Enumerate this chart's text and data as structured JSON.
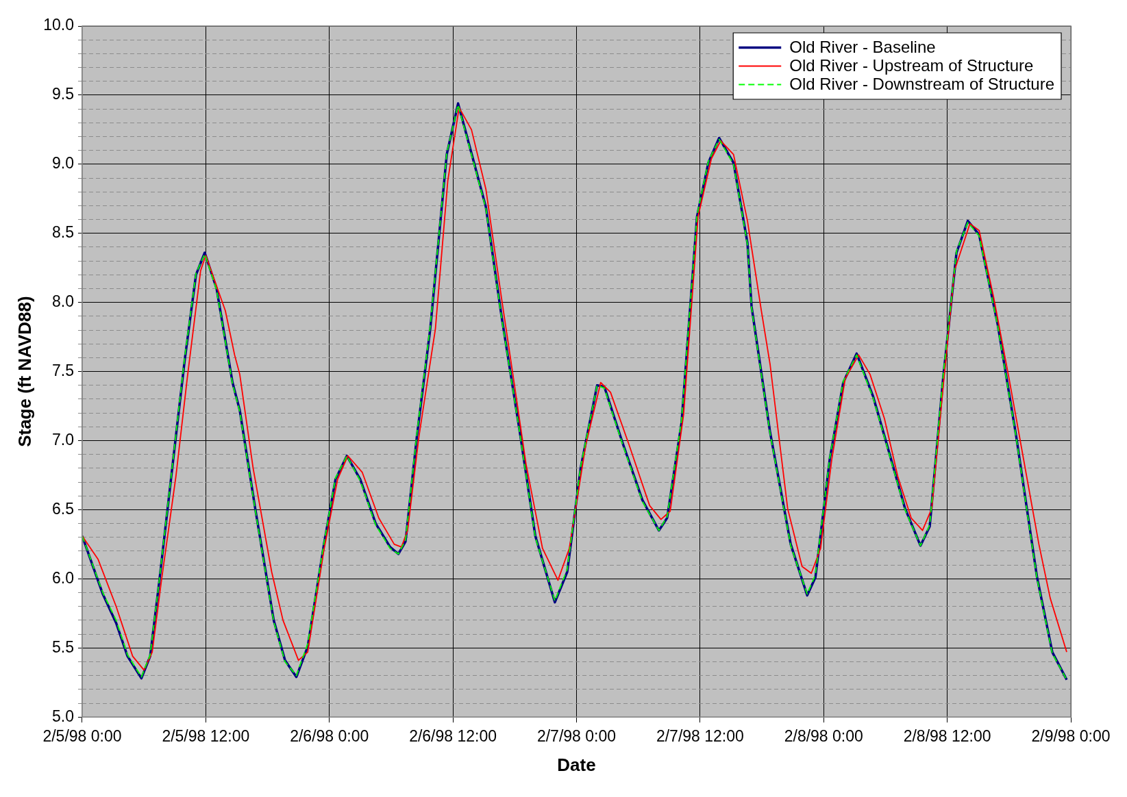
{
  "chart_data": {
    "type": "line",
    "xlabel": "Date",
    "ylabel": "Stage (ft NAVD88)",
    "xlim": [
      "1998-02-05T00:00",
      "1998-02-09T00:00"
    ],
    "xticks": [
      {
        "value": "1998-02-05T00:00",
        "label": "2/5/98 0:00"
      },
      {
        "value": "1998-02-05T12:00",
        "label": "2/5/98 12:00"
      },
      {
        "value": "1998-02-06T00:00",
        "label": "2/6/98 0:00"
      },
      {
        "value": "1998-02-06T12:00",
        "label": "2/6/98 12:00"
      },
      {
        "value": "1998-02-07T00:00",
        "label": "2/7/98 0:00"
      },
      {
        "value": "1998-02-07T12:00",
        "label": "2/7/98 12:00"
      },
      {
        "value": "1998-02-08T00:00",
        "label": "2/8/98 0:00"
      },
      {
        "value": "1998-02-08T12:00",
        "label": "2/8/98 12:00"
      },
      {
        "value": "1998-02-09T00:00",
        "label": "2/9/98 0:00"
      }
    ],
    "ylim": [
      5,
      10
    ],
    "yticks": [
      {
        "value": 5,
        "label": "5.0"
      },
      {
        "value": 5.1,
        "label": null
      },
      {
        "value": 5.2,
        "label": null
      },
      {
        "value": 5.3,
        "label": null
      },
      {
        "value": 5.4,
        "label": null
      },
      {
        "value": 5.5,
        "label": "5.5"
      },
      {
        "value": 5.6,
        "label": null
      },
      {
        "value": 5.7,
        "label": null
      },
      {
        "value": 5.8,
        "label": null
      },
      {
        "value": 5.9,
        "label": null
      },
      {
        "value": 6,
        "label": "6.0"
      },
      {
        "value": 6.1,
        "label": null
      },
      {
        "value": 6.2,
        "label": null
      },
      {
        "value": 6.3,
        "label": null
      },
      {
        "value": 6.4,
        "label": null
      },
      {
        "value": 6.5,
        "label": "6.5"
      },
      {
        "value": 6.6,
        "label": null
      },
      {
        "value": 6.7,
        "label": null
      },
      {
        "value": 6.8,
        "label": null
      },
      {
        "value": 6.9,
        "label": null
      },
      {
        "value": 7,
        "label": "7.0"
      },
      {
        "value": 7.1,
        "label": null
      },
      {
        "value": 7.2,
        "label": null
      },
      {
        "value": 7.3,
        "label": null
      },
      {
        "value": 7.4,
        "label": null
      },
      {
        "value": 7.5,
        "label": "7.5"
      },
      {
        "value": 7.6,
        "label": null
      },
      {
        "value": 7.7,
        "label": null
      },
      {
        "value": 7.8,
        "label": null
      },
      {
        "value": 7.9,
        "label": null
      },
      {
        "value": 8,
        "label": "8.0"
      },
      {
        "value": 8.1,
        "label": null
      },
      {
        "value": 8.2,
        "label": null
      },
      {
        "value": 8.3,
        "label": null
      },
      {
        "value": 8.4,
        "label": null
      },
      {
        "value": 8.5,
        "label": "8.5"
      },
      {
        "value": 8.6,
        "label": null
      },
      {
        "value": 8.7,
        "label": null
      },
      {
        "value": 8.8,
        "label": null
      },
      {
        "value": 8.9,
        "label": null
      },
      {
        "value": 9,
        "label": "9.0"
      },
      {
        "value": 9.1,
        "label": null
      },
      {
        "value": 9.2,
        "label": null
      },
      {
        "value": 9.3,
        "label": null
      },
      {
        "value": 9.4,
        "label": null
      },
      {
        "value": 9.5,
        "label": "9.5"
      },
      {
        "value": 9.6,
        "label": null
      },
      {
        "value": 9.7,
        "label": null
      },
      {
        "value": 9.8,
        "label": null
      },
      {
        "value": 9.9,
        "label": null
      },
      {
        "value": 10,
        "label": "10.0"
      }
    ],
    "grid": true,
    "legend": "top right",
    "marker": "none",
    "x": [
      "1998-02-05T00:00",
      "1998-02-05T02:00",
      "1998-02-05T03:18",
      "1998-02-05T04:24",
      "1998-02-05T05:45",
      "1998-02-05T06:36",
      "1998-02-05T07:30",
      "1998-02-05T08:51",
      "1998-02-05T09:57",
      "1998-02-05T11:03",
      "1998-02-05T11:54",
      "1998-02-05T13:03",
      "1998-02-05T14:36",
      "1998-02-05T15:18",
      "1998-02-05T16:48",
      "1998-02-05T18:36",
      "1998-02-05T19:42",
      "1998-02-05T20:48",
      "1998-02-05T21:54",
      "1998-02-05T23:30",
      "1998-02-06T00:36",
      "1998-02-06T01:42",
      "1998-02-06T03:00",
      "1998-02-06T04:30",
      "1998-02-06T05:54",
      "1998-02-06T06:42",
      "1998-02-06T07:24",
      "1998-02-06T08:30",
      "1998-02-06T09:48",
      "1998-02-06T11:24",
      "1998-02-06T12:30",
      "1998-02-06T14:03",
      "1998-02-06T15:12",
      "1998-02-06T16:42",
      "1998-02-06T18:30",
      "1998-02-06T20:00",
      "1998-02-06T21:54",
      "1998-02-06T23:06",
      "1998-02-07T00:24",
      "1998-02-07T02:00",
      "1998-02-07T02:42",
      "1998-02-07T04:24",
      "1998-02-07T06:24",
      "1998-02-07T08:00",
      "1998-02-07T08:48",
      "1998-02-07T10:12",
      "1998-02-07T11:42",
      "1998-02-07T12:48",
      "1998-02-07T13:51",
      "1998-02-07T15:15",
      "1998-02-07T16:36",
      "1998-02-07T17:00",
      "1998-02-07T18:48",
      "1998-02-07T20:48",
      "1998-02-07T22:24",
      "1998-02-07T23:12",
      "1998-02-08T00:36",
      "1998-02-08T01:54",
      "1998-02-08T03:12",
      "1998-02-08T04:48",
      "1998-02-08T06:18",
      "1998-02-08T07:54",
      "1998-02-08T09:24",
      "1998-02-08T10:18",
      "1998-02-08T11:36",
      "1998-02-08T12:54",
      "1998-02-08T14:00",
      "1998-02-08T15:06",
      "1998-02-08T16:54",
      "1998-02-08T18:42",
      "1998-02-08T20:42",
      "1998-02-08T22:12",
      "1998-02-08T23:36"
    ],
    "series": [
      {
        "name": "Old River - Baseline",
        "color": "#000080",
        "line_style": "solid",
        "values": [
          6.31,
          5.89,
          5.68,
          5.44,
          5.28,
          5.44,
          5.99,
          6.87,
          7.58,
          8.2,
          8.36,
          8.1,
          7.42,
          7.22,
          6.51,
          5.7,
          5.41,
          5.29,
          5.51,
          6.26,
          6.72,
          6.89,
          6.72,
          6.4,
          6.23,
          6.18,
          6.27,
          7.03,
          7.81,
          9.07,
          9.44,
          9.01,
          8.69,
          7.91,
          7.06,
          6.31,
          5.83,
          6.05,
          6.8,
          7.4,
          7.39,
          7.0,
          6.57,
          6.35,
          6.44,
          7.13,
          8.62,
          9.01,
          9.19,
          9.01,
          8.43,
          7.97,
          7.06,
          6.25,
          5.88,
          6.01,
          6.87,
          7.42,
          7.63,
          7.32,
          6.93,
          6.51,
          6.24,
          6.38,
          7.45,
          8.36,
          8.59,
          8.49,
          7.84,
          7.03,
          6.02,
          5.47,
          5.27
        ]
      },
      {
        "name": "Old River - Upstream of Structure",
        "color": "#ff0000",
        "line_style": "solid",
        "x": [
          "1998-02-05T00:00",
          "1998-02-05T01:33",
          "1998-02-05T03:18",
          "1998-02-05T04:54",
          "1998-02-05T06:00",
          "1998-02-05T06:48",
          "1998-02-05T07:42",
          "1998-02-05T09:06",
          "1998-02-05T10:12",
          "1998-02-05T11:30",
          "1998-02-05T12:00",
          "1998-02-05T13:54",
          "1998-02-05T14:48",
          "1998-02-05T15:18",
          "1998-02-05T16:36",
          "1998-02-05T18:24",
          "1998-02-05T19:30",
          "1998-02-05T21:00",
          "1998-02-05T21:54",
          "1998-02-05T23:30",
          "1998-02-06T00:48",
          "1998-02-06T01:48",
          "1998-02-06T03:12",
          "1998-02-06T04:48",
          "1998-02-06T06:18",
          "1998-02-06T07:00",
          "1998-02-06T07:36",
          "1998-02-06T08:42",
          "1998-02-06T10:18",
          "1998-02-06T11:30",
          "1998-02-06T12:36",
          "1998-02-06T13:48",
          "1998-02-06T15:12",
          "1998-02-06T16:42",
          "1998-02-06T18:00",
          "1998-02-06T19:06",
          "1998-02-06T20:42",
          "1998-02-06T22:12",
          "1998-02-06T23:18",
          "1998-02-07T00:54",
          "1998-02-07T02:21",
          "1998-02-07T03:18",
          "1998-02-07T05:06",
          "1998-02-07T07:06",
          "1998-02-07T08:12",
          "1998-02-07T09:06",
          "1998-02-07T10:24",
          "1998-02-07T11:48",
          "1998-02-07T13:06",
          "1998-02-07T14:00",
          "1998-02-07T15:15",
          "1998-02-07T16:36",
          "1998-02-07T17:57",
          "1998-02-07T18:48",
          "1998-02-07T20:30",
          "1998-02-07T21:54",
          "1998-02-07T22:48",
          "1998-02-07T23:42",
          "1998-02-08T00:48",
          "1998-02-08T02:06",
          "1998-02-08T03:24",
          "1998-02-08T04:30",
          "1998-02-08T05:54",
          "1998-02-08T07:12",
          "1998-02-08T08:30",
          "1998-02-08T09:36",
          "1998-02-08T10:30",
          "1998-02-08T11:36",
          "1998-02-08T12:42",
          "1998-02-08T14:12",
          "1998-02-08T15:06",
          "1998-02-08T16:30",
          "1998-02-08T18:00",
          "1998-02-08T19:24",
          "1998-02-08T20:54",
          "1998-02-08T22:00",
          "1998-02-08T23:36"
        ],
        "values": [
          6.31,
          6.14,
          5.8,
          5.44,
          5.34,
          5.47,
          5.99,
          6.74,
          7.45,
          8.23,
          8.34,
          7.94,
          7.62,
          7.48,
          6.8,
          6.05,
          5.7,
          5.41,
          5.47,
          6.22,
          6.72,
          6.89,
          6.77,
          6.44,
          6.25,
          6.23,
          6.35,
          7.03,
          7.81,
          8.88,
          9.41,
          9.25,
          8.82,
          8.04,
          7.39,
          6.83,
          6.22,
          5.99,
          6.22,
          6.97,
          7.42,
          7.35,
          6.97,
          6.53,
          6.43,
          6.49,
          7.19,
          8.62,
          9.04,
          9.17,
          9.07,
          8.59,
          7.94,
          7.55,
          6.51,
          6.09,
          6.04,
          6.22,
          6.87,
          7.45,
          7.62,
          7.48,
          7.16,
          6.74,
          6.44,
          6.35,
          6.51,
          7.39,
          8.23,
          8.57,
          8.52,
          8.04,
          7.45,
          6.87,
          6.25,
          5.86,
          5.47
        ]
      },
      {
        "name": "Old River - Downstream of Structure",
        "color": "#00ff00",
        "line_style": "dashed",
        "values": [
          6.31,
          5.9,
          5.7,
          5.45,
          5.29,
          5.45,
          6.0,
          6.88,
          7.6,
          8.21,
          8.35,
          8.09,
          7.41,
          7.21,
          6.5,
          5.69,
          5.4,
          5.3,
          5.53,
          6.27,
          6.73,
          6.89,
          6.71,
          6.39,
          6.22,
          6.18,
          6.28,
          7.05,
          7.83,
          9.08,
          9.43,
          9.0,
          8.68,
          7.9,
          7.05,
          6.3,
          5.84,
          6.07,
          6.81,
          7.4,
          7.38,
          6.99,
          6.56,
          6.35,
          6.45,
          7.15,
          8.63,
          9.02,
          9.18,
          9.0,
          8.42,
          7.96,
          7.05,
          6.24,
          5.89,
          6.03,
          6.88,
          7.43,
          7.62,
          7.31,
          6.92,
          6.5,
          6.24,
          6.39,
          7.47,
          8.37,
          8.58,
          8.48,
          7.83,
          7.02,
          6.01,
          5.46,
          5.27
        ]
      }
    ]
  }
}
